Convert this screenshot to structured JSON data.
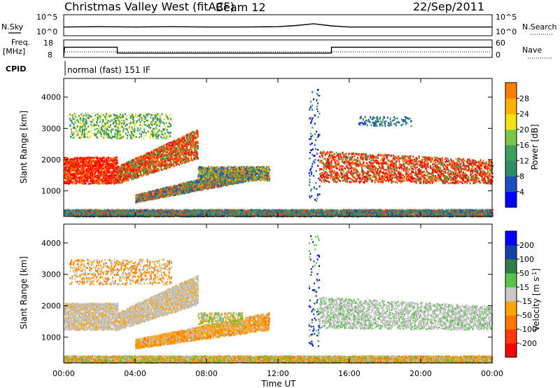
{
  "header": {
    "station": "Christmas Valley West (fitACF)",
    "beam": "Beam 12",
    "date": "22/Sep/2011"
  },
  "top_panels": {
    "nsky_label": "N.Sky",
    "nsky_ticks": [
      "10^5",
      "10^0"
    ],
    "nsearch_label": "N.Search",
    "nsearch_ticks": [
      "10^5",
      "10^0"
    ],
    "freq_label_1": "Freq.",
    "freq_label_2": "[MHz]",
    "freq_ticks": [
      "18",
      "8"
    ],
    "nave_label": "Nave",
    "nave_ticks": [
      "60",
      "0"
    ],
    "cpid_label": "CPID",
    "cpid_value": "normal (fast) 151 IF"
  },
  "colors": {
    "power_scale": [
      "#0000ff",
      "#1e4fbe",
      "#2f8c62",
      "#3d9f5a",
      "#7ac84a",
      "#f2e20f",
      "#ffb000",
      "#ff7d00",
      "#ff4400",
      "#ff0000"
    ],
    "velocity_scale": [
      "#0000ff",
      "#1440a8",
      "#2e7d4a",
      "#5ac24a",
      "#c8c8c8",
      "#ffa500",
      "#ff7700",
      "#ff3b00",
      "#ff0000"
    ],
    "ground_gray": "#c0c0c0"
  },
  "chart_data": [
    {
      "type": "line",
      "title": "N.Sky / N.Search",
      "x": [
        0,
        2,
        4,
        6,
        8,
        10,
        12,
        13,
        14,
        15,
        16,
        18,
        20,
        22,
        24
      ],
      "series": [
        {
          "name": "N.Sky",
          "values": [
            2.0,
            2.1,
            2.0,
            2.1,
            2.0,
            2.0,
            2.1,
            2.4,
            2.9,
            2.3,
            2.0,
            2.0,
            2.0,
            2.0,
            2.0
          ]
        }
      ],
      "ylim": [
        0,
        5
      ]
    },
    {
      "type": "line",
      "title": "Freq. [MHz] / Nave",
      "x": [
        0,
        0.05,
        3.0,
        3.0,
        15.0,
        15.0,
        24
      ],
      "series": [
        {
          "name": "Freq.",
          "values": [
            8,
            14,
            14,
            10,
            10,
            14,
            14
          ]
        }
      ],
      "ylim": [
        8,
        18
      ]
    },
    {
      "type": "heatmap",
      "title": "Power [dB]",
      "xlabel": "Time UT",
      "ylabel": "Slant Range [km]",
      "xlim": [
        0,
        24
      ],
      "ylim": [
        180,
        4600
      ],
      "x_ticks": [
        "00:00",
        "04:00",
        "08:00",
        "12:00",
        "16:00",
        "20:00",
        "00:00"
      ],
      "y_ticks": [
        1000,
        2000,
        3000,
        4000
      ],
      "colorbar_ticks": [
        4,
        8,
        12,
        16,
        20,
        24,
        28
      ],
      "colorbar_label": "Power [dB]"
    },
    {
      "type": "heatmap",
      "title": "Velocity [m s-1]",
      "xlabel": "Time UT",
      "ylabel": "Slant Range [km]",
      "xlim": [
        0,
        24
      ],
      "ylim": [
        180,
        4600
      ],
      "x_ticks": [
        "00:00",
        "04:00",
        "08:00",
        "12:00",
        "16:00",
        "20:00",
        "00:00"
      ],
      "y_ticks": [
        1000,
        2000,
        3000,
        4000
      ],
      "colorbar_ticks": [
        200,
        100,
        50,
        15,
        -15,
        -50,
        -100,
        -200
      ],
      "colorbar_label": "Velocity [m s-1]"
    }
  ],
  "axes": {
    "x_label": "Time UT",
    "y_label": "Slant Range [km]",
    "x_ticks": [
      "00:00",
      "04:00",
      "08:00",
      "12:00",
      "16:00",
      "20:00",
      "00:00"
    ],
    "y_ticks": [
      "1000",
      "2000",
      "3000",
      "4000"
    ],
    "power_cbar_label": "Power [dB]",
    "velocity_cbar_label": "Velocity [m s",
    "velocity_cbar_sup": "-1",
    "velocity_cbar_close": "]",
    "power_ticks": [
      "28",
      "24",
      "20",
      "16",
      "12",
      "8",
      "4"
    ],
    "velocity_ticks": [
      "200",
      "100",
      "50",
      "15",
      "-15",
      "-50",
      "-100",
      "-200"
    ]
  }
}
